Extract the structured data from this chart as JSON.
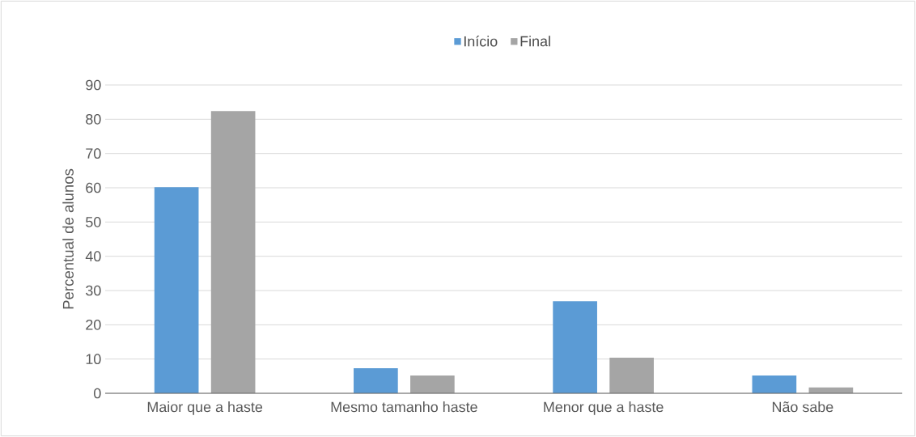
{
  "chart_data": {
    "type": "bar",
    "categories": [
      "Maior que a haste",
      "Mesmo tamanho haste",
      "Menor que a haste",
      "Não sabe"
    ],
    "series": [
      {
        "name": "Início",
        "color": "#5b9bd5",
        "values": [
          60.2,
          7.3,
          26.9,
          5.2
        ]
      },
      {
        "name": "Final",
        "color": "#a5a5a5",
        "values": [
          82.4,
          5.2,
          10.4,
          1.7
        ]
      }
    ],
    "ylabel": "Percentual de alunos",
    "ylim": [
      0,
      90
    ],
    "yticks": [
      0,
      10,
      20,
      30,
      40,
      50,
      60,
      70,
      80,
      90
    ],
    "grid": "y",
    "legend": "top"
  }
}
